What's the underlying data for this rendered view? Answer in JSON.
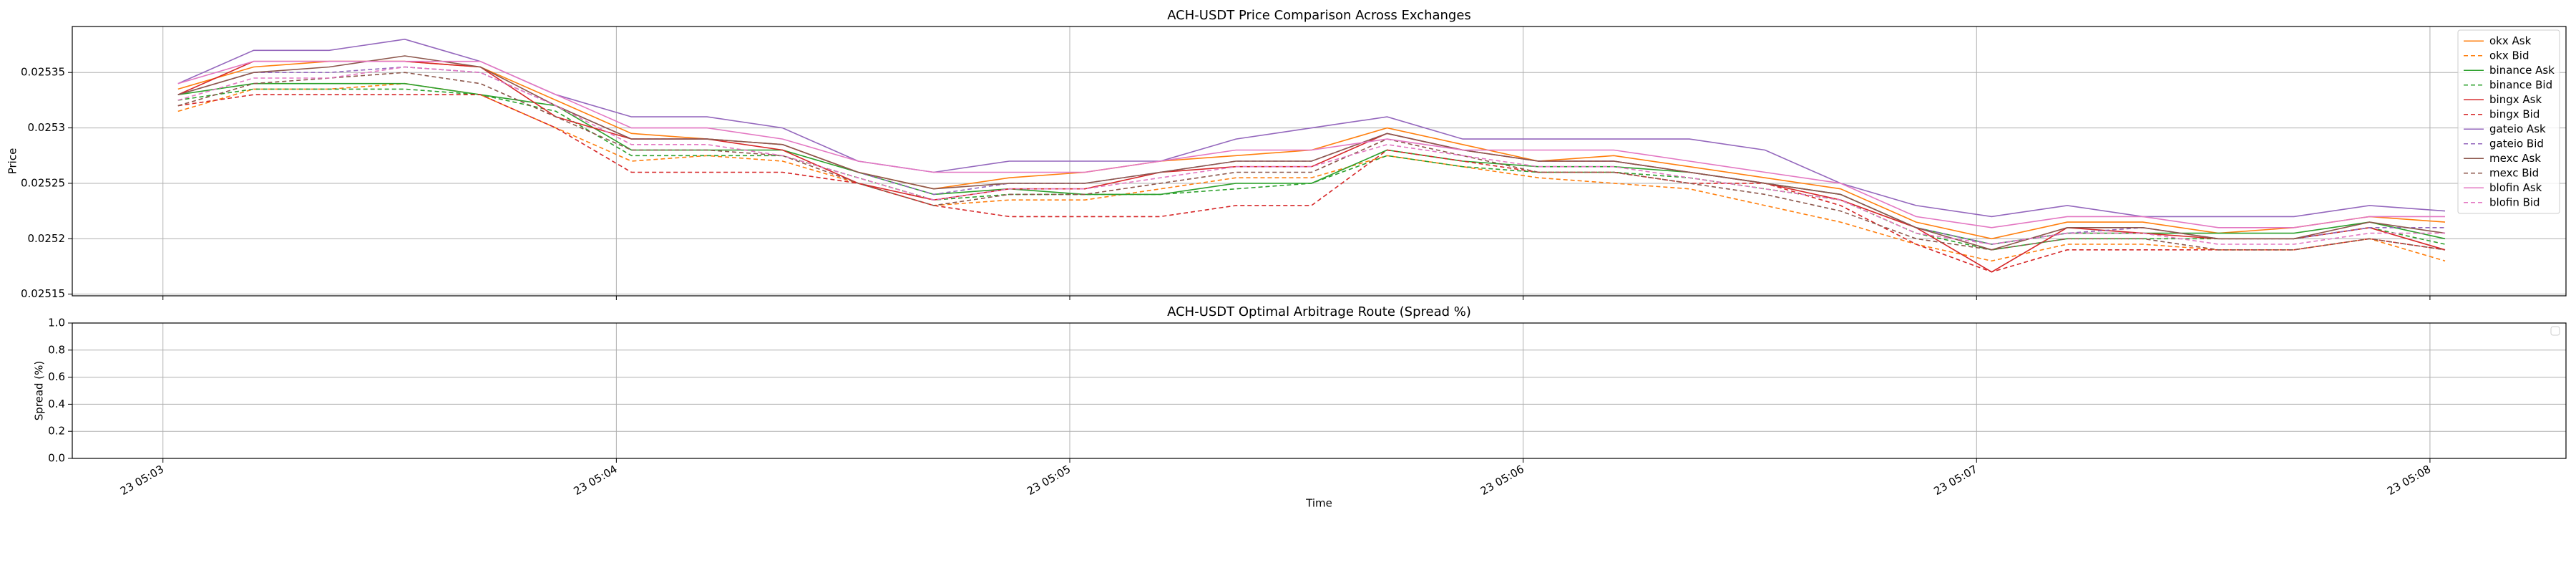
{
  "chart_data": [
    {
      "type": "line",
      "title": "ACH-USDT Price Comparison Across Exchanges",
      "y_label": "Price",
      "x": [
        "23 05:03:02",
        "23 05:03:12",
        "23 05:03:22",
        "23 05:03:32",
        "23 05:03:42",
        "23 05:03:52",
        "23 05:04:02",
        "23 05:04:12",
        "23 05:04:22",
        "23 05:04:32",
        "23 05:04:42",
        "23 05:04:52",
        "23 05:05:02",
        "23 05:05:12",
        "23 05:05:22",
        "23 05:05:32",
        "23 05:05:42",
        "23 05:05:52",
        "23 05:06:02",
        "23 05:06:12",
        "23 05:06:22",
        "23 05:06:32",
        "23 05:06:42",
        "23 05:06:52",
        "23 05:07:02",
        "23 05:07:12",
        "23 05:07:22",
        "23 05:07:32",
        "23 05:07:42",
        "23 05:07:52",
        "23 05:08:02"
      ],
      "xlim": [
        "23 05:02:48",
        "23 05:08:18"
      ],
      "xticks": [
        "23 05:03",
        "23 05:04",
        "23 05:05",
        "23 05:06",
        "23 05:07",
        "23 05:08"
      ],
      "ylim": [
        0.0251485,
        0.0253915
      ],
      "yticks": [
        0.02515,
        0.0252,
        0.02525,
        0.0253,
        0.02535
      ],
      "grid": true,
      "legend": "upper right",
      "series": [
        {
          "name": "okx Ask",
          "color": "#ff7f0e",
          "linestyle": "solid",
          "values": [
            0.025335,
            0.025355,
            0.02536,
            0.02536,
            0.025355,
            0.025325,
            0.025295,
            0.02529,
            0.025285,
            0.02526,
            0.025245,
            0.025255,
            0.02526,
            0.02527,
            0.025275,
            0.02528,
            0.0253,
            0.025285,
            0.02527,
            0.025275,
            0.025265,
            0.025255,
            0.025245,
            0.025215,
            0.0252,
            0.025215,
            0.025215,
            0.025205,
            0.02521,
            0.02522,
            0.025215
          ]
        },
        {
          "name": "okx Bid",
          "color": "#ff7f0e",
          "linestyle": "dashed",
          "values": [
            0.025315,
            0.025335,
            0.025335,
            0.02534,
            0.02533,
            0.0253,
            0.02527,
            0.025275,
            0.02527,
            0.02525,
            0.02523,
            0.025235,
            0.025235,
            0.025245,
            0.025255,
            0.025255,
            0.025275,
            0.025265,
            0.025255,
            0.02525,
            0.025245,
            0.02523,
            0.025215,
            0.025195,
            0.02518,
            0.025195,
            0.025195,
            0.02519,
            0.02519,
            0.0252,
            0.02518
          ]
        },
        {
          "name": "binance Ask",
          "color": "#2ca02c",
          "linestyle": "solid",
          "values": [
            0.02533,
            0.02534,
            0.02534,
            0.02534,
            0.02533,
            0.02532,
            0.02528,
            0.02528,
            0.02528,
            0.02526,
            0.02524,
            0.025245,
            0.02524,
            0.02524,
            0.02525,
            0.02525,
            0.02528,
            0.02527,
            0.025265,
            0.025265,
            0.02526,
            0.02525,
            0.02524,
            0.02521,
            0.025195,
            0.025205,
            0.025205,
            0.025205,
            0.025205,
            0.025215,
            0.0252
          ]
        },
        {
          "name": "binance Bid",
          "color": "#2ca02c",
          "linestyle": "dashed",
          "values": [
            0.025325,
            0.025335,
            0.025335,
            0.025335,
            0.02533,
            0.025315,
            0.025275,
            0.025275,
            0.025275,
            0.025255,
            0.025235,
            0.02524,
            0.02524,
            0.02524,
            0.025245,
            0.02525,
            0.025275,
            0.025265,
            0.02526,
            0.02526,
            0.025255,
            0.025245,
            0.025235,
            0.025205,
            0.02519,
            0.0252,
            0.0252,
            0.0252,
            0.0252,
            0.02521,
            0.025195
          ]
        },
        {
          "name": "bingx Ask",
          "color": "#d62728",
          "linestyle": "solid",
          "values": [
            0.02533,
            0.02536,
            0.02536,
            0.02536,
            0.025355,
            0.02531,
            0.02529,
            0.02529,
            0.02528,
            0.02525,
            0.025235,
            0.025245,
            0.025245,
            0.02526,
            0.025265,
            0.025265,
            0.025295,
            0.02528,
            0.02527,
            0.02527,
            0.02526,
            0.02525,
            0.025235,
            0.02521,
            0.02517,
            0.02521,
            0.025205,
            0.0252,
            0.0252,
            0.02521,
            0.02519
          ]
        },
        {
          "name": "bingx Bid",
          "color": "#d62728",
          "linestyle": "dashed",
          "values": [
            0.02532,
            0.02533,
            0.02533,
            0.02533,
            0.02533,
            0.0253,
            0.02526,
            0.02526,
            0.02526,
            0.02525,
            0.02523,
            0.02522,
            0.02522,
            0.02522,
            0.02523,
            0.02523,
            0.02528,
            0.02527,
            0.02526,
            0.02526,
            0.02525,
            0.02525,
            0.02523,
            0.025195,
            0.02517,
            0.02519,
            0.02519,
            0.02519,
            0.02519,
            0.0252,
            0.02519
          ]
        },
        {
          "name": "gateio Ask",
          "color": "#9467bd",
          "linestyle": "solid",
          "values": [
            0.02534,
            0.02537,
            0.02537,
            0.02538,
            0.02536,
            0.02533,
            0.02531,
            0.02531,
            0.0253,
            0.02527,
            0.02526,
            0.02527,
            0.02527,
            0.02527,
            0.02529,
            0.0253,
            0.02531,
            0.02529,
            0.02529,
            0.02529,
            0.02529,
            0.02528,
            0.02525,
            0.02523,
            0.02522,
            0.02523,
            0.02522,
            0.02522,
            0.02522,
            0.02523,
            0.025225
          ]
        },
        {
          "name": "gateio Bid",
          "color": "#9467bd",
          "linestyle": "dashed",
          "values": [
            0.02533,
            0.02535,
            0.02535,
            0.025355,
            0.02535,
            0.02532,
            0.02529,
            0.02529,
            0.025285,
            0.02526,
            0.02524,
            0.02525,
            0.02525,
            0.02526,
            0.02527,
            0.02527,
            0.025295,
            0.02528,
            0.02527,
            0.02527,
            0.02526,
            0.02525,
            0.02524,
            0.02521,
            0.025195,
            0.025205,
            0.02521,
            0.0252,
            0.0252,
            0.02521,
            0.02521
          ]
        },
        {
          "name": "mexc Ask",
          "color": "#8c564b",
          "linestyle": "solid",
          "values": [
            0.02533,
            0.02535,
            0.025355,
            0.025365,
            0.025355,
            0.02532,
            0.02529,
            0.02529,
            0.025285,
            0.02526,
            0.025245,
            0.02525,
            0.02525,
            0.02526,
            0.02527,
            0.02527,
            0.025295,
            0.02528,
            0.02527,
            0.02527,
            0.02526,
            0.02525,
            0.02524,
            0.02521,
            0.02519,
            0.02521,
            0.02521,
            0.0252,
            0.0252,
            0.025215,
            0.025205
          ]
        },
        {
          "name": "mexc Bid",
          "color": "#8c564b",
          "linestyle": "dashed",
          "values": [
            0.02532,
            0.02534,
            0.025345,
            0.02535,
            0.02534,
            0.02531,
            0.02528,
            0.02528,
            0.025275,
            0.02525,
            0.02523,
            0.02524,
            0.02524,
            0.02525,
            0.02526,
            0.02526,
            0.02529,
            0.025275,
            0.02526,
            0.02526,
            0.02525,
            0.02524,
            0.025225,
            0.0252,
            0.02519,
            0.0252,
            0.0252,
            0.02519,
            0.02519,
            0.0252,
            0.02519
          ]
        },
        {
          "name": "blofin Ask",
          "color": "#e377c2",
          "linestyle": "solid",
          "values": [
            0.02534,
            0.02536,
            0.02536,
            0.02536,
            0.02536,
            0.02533,
            0.0253,
            0.0253,
            0.02529,
            0.02527,
            0.02526,
            0.02526,
            0.02526,
            0.02527,
            0.02528,
            0.02528,
            0.02529,
            0.02528,
            0.02528,
            0.02528,
            0.02527,
            0.02526,
            0.02525,
            0.02522,
            0.02521,
            0.02522,
            0.02522,
            0.02521,
            0.02521,
            0.02522,
            0.02522
          ]
        },
        {
          "name": "blofin Bid",
          "color": "#e377c2",
          "linestyle": "dashed",
          "values": [
            0.025325,
            0.025345,
            0.025345,
            0.025355,
            0.02535,
            0.02532,
            0.025285,
            0.025285,
            0.025275,
            0.025255,
            0.025235,
            0.025245,
            0.025245,
            0.025255,
            0.025265,
            0.025265,
            0.025285,
            0.025275,
            0.025265,
            0.025265,
            0.025255,
            0.025245,
            0.025235,
            0.025205,
            0.025195,
            0.025205,
            0.025205,
            0.025195,
            0.025195,
            0.025205,
            0.025205
          ]
        }
      ]
    },
    {
      "type": "line",
      "title": "ACH-USDT Optimal Arbitrage Route (Spread %)",
      "x_label": "Time",
      "y_label": "Spread (%)",
      "xlim": [
        "23 05:02:48",
        "23 05:08:18"
      ],
      "xticks": [
        "23 05:03",
        "23 05:04",
        "23 05:05",
        "23 05:06",
        "23 05:07",
        "23 05:08"
      ],
      "ylim": [
        0,
        1
      ],
      "yticks": [
        {
          "value": 0,
          "label": "0.0"
        },
        0.2,
        0.4,
        0.6,
        0.8,
        {
          "value": 1,
          "label": "1.0"
        }
      ],
      "grid": true,
      "legend": "upper right",
      "series": []
    }
  ]
}
